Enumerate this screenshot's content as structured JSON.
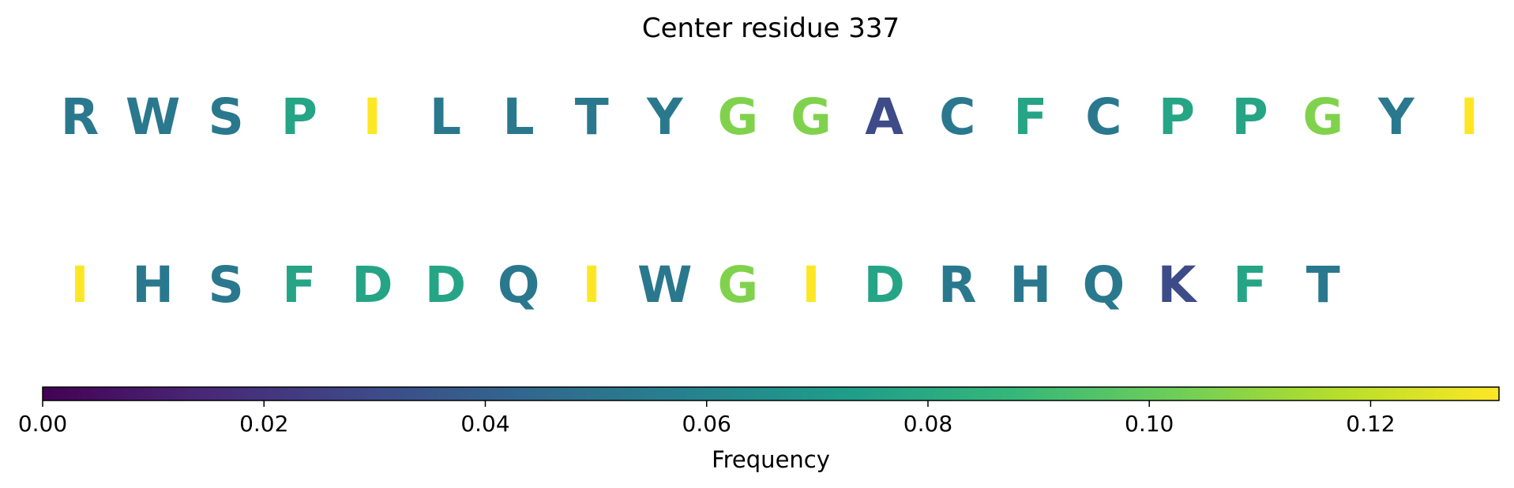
{
  "chart_data": {
    "type": "other",
    "title": "Center residue 337",
    "rows": [
      {
        "letters": [
          "R",
          "W",
          "S",
          "P",
          "I",
          "L",
          "L",
          "T",
          "Y",
          "G",
          "G",
          "A",
          "C",
          "F",
          "C",
          "P",
          "P",
          "G",
          "Y",
          "I"
        ],
        "values": [
          0.053,
          0.053,
          0.053,
          0.077,
          0.132,
          0.053,
          0.053,
          0.053,
          0.053,
          0.106,
          0.106,
          0.03,
          0.053,
          0.077,
          0.053,
          0.077,
          0.077,
          0.106,
          0.053,
          0.132
        ]
      },
      {
        "letters": [
          "I",
          "H",
          "S",
          "F",
          "D",
          "D",
          "Q",
          "I",
          "W",
          "G",
          "I",
          "D",
          "R",
          "H",
          "Q",
          "K",
          "F",
          "T"
        ],
        "values": [
          0.132,
          0.053,
          0.053,
          0.077,
          0.077,
          0.077,
          0.053,
          0.132,
          0.053,
          0.106,
          0.132,
          0.077,
          0.053,
          0.053,
          0.053,
          0.03,
          0.077,
          0.053
        ]
      }
    ],
    "colorbar": {
      "label": "Frequency",
      "colormap": "viridis",
      "range": [
        0,
        0.1316
      ],
      "ticks": [
        0.0,
        0.02,
        0.04,
        0.06,
        0.08,
        0.1,
        0.12
      ],
      "tick_labels": [
        "0.00",
        "0.02",
        "0.04",
        "0.06",
        "0.08",
        "0.10",
        "0.12"
      ]
    }
  }
}
